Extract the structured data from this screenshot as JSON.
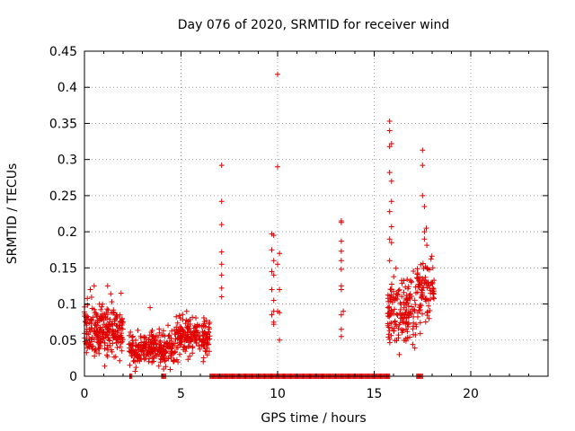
{
  "chart_data": {
    "type": "scatter",
    "title": "Day 076 of 2020, SRMTID for receiver wind",
    "xlabel": "GPS time / hours",
    "ylabel": "SRMTID / TECUs",
    "xlim": [
      0,
      24
    ],
    "ylim": [
      0,
      0.45
    ],
    "xticks": [
      0,
      5,
      10,
      15,
      20
    ],
    "xtick_labels": [
      "0",
      "5",
      "10",
      "15",
      "20"
    ],
    "yticks": [
      0,
      0.05,
      0.1,
      0.15,
      0.2,
      0.25,
      0.3,
      0.35,
      0.4,
      0.45
    ],
    "ytick_labels": [
      "0",
      "0.05",
      "0.1",
      "0.15",
      "0.2",
      "0.25",
      "0.3",
      "0.35",
      "0.4",
      "0.45"
    ],
    "grid": true,
    "marker": "+",
    "color": "#e00000",
    "clusters": [
      {
        "x_range": [
          0.0,
          2.0
        ],
        "y_center": 0.065,
        "y_spread": 0.03,
        "count": 260
      },
      {
        "x_range": [
          2.3,
          4.7
        ],
        "y_center": 0.038,
        "y_spread": 0.018,
        "count": 260
      },
      {
        "x_range": [
          4.7,
          6.5
        ],
        "y_center": 0.055,
        "y_spread": 0.022,
        "count": 200
      },
      {
        "x_range": [
          15.7,
          17.2
        ],
        "y_center": 0.09,
        "y_spread": 0.04,
        "count": 160
      },
      {
        "x_range": [
          17.2,
          18.1
        ],
        "y_center": 0.12,
        "y_spread": 0.04,
        "count": 90
      }
    ],
    "series": [
      {
        "name": "isolated",
        "points": [
          [
            0.3,
            0.12
          ],
          [
            0.5,
            0.125
          ],
          [
            1.2,
            0.125
          ],
          [
            1.9,
            0.115
          ],
          [
            3.4,
            0.095
          ],
          [
            4.1,
            0.01
          ],
          [
            7.1,
            0.292
          ],
          [
            7.1,
            0.242
          ],
          [
            7.1,
            0.21
          ],
          [
            7.1,
            0.172
          ],
          [
            7.1,
            0.155
          ],
          [
            7.1,
            0.14
          ],
          [
            7.1,
            0.122
          ],
          [
            7.1,
            0.11
          ],
          [
            9.7,
            0.197
          ],
          [
            9.8,
            0.195
          ],
          [
            9.7,
            0.175
          ],
          [
            9.8,
            0.16
          ],
          [
            9.7,
            0.145
          ],
          [
            9.8,
            0.14
          ],
          [
            9.7,
            0.12
          ],
          [
            9.8,
            0.105
          ],
          [
            9.8,
            0.09
          ],
          [
            9.7,
            0.085
          ],
          [
            9.8,
            0.075
          ],
          [
            9.8,
            0.072
          ],
          [
            10.0,
            0.418
          ],
          [
            10.0,
            0.29
          ],
          [
            10.1,
            0.17
          ],
          [
            10.0,
            0.155
          ],
          [
            10.1,
            0.12
          ],
          [
            10.0,
            0.09
          ],
          [
            10.1,
            0.088
          ],
          [
            10.1,
            0.05
          ],
          [
            13.3,
            0.215
          ],
          [
            13.3,
            0.213
          ],
          [
            13.3,
            0.187
          ],
          [
            13.3,
            0.173
          ],
          [
            13.3,
            0.16
          ],
          [
            13.3,
            0.148
          ],
          [
            13.3,
            0.125
          ],
          [
            13.3,
            0.12
          ],
          [
            13.4,
            0.09
          ],
          [
            13.3,
            0.085
          ],
          [
            13.3,
            0.065
          ],
          [
            13.3,
            0.055
          ],
          [
            15.8,
            0.353
          ],
          [
            15.8,
            0.34
          ],
          [
            15.9,
            0.322
          ],
          [
            15.8,
            0.318
          ],
          [
            15.8,
            0.282
          ],
          [
            15.9,
            0.27
          ],
          [
            15.9,
            0.242
          ],
          [
            15.8,
            0.228
          ],
          [
            15.9,
            0.207
          ],
          [
            15.8,
            0.19
          ],
          [
            15.9,
            0.185
          ],
          [
            15.8,
            0.16
          ],
          [
            16.3,
            0.03
          ],
          [
            17.5,
            0.313
          ],
          [
            17.5,
            0.292
          ],
          [
            17.5,
            0.25
          ],
          [
            17.6,
            0.235
          ],
          [
            17.6,
            0.2
          ],
          [
            17.7,
            0.205
          ],
          [
            17.6,
            0.19
          ]
        ]
      },
      {
        "name": "zero-values",
        "x_ranges": [
          [
            2.35,
            2.45
          ],
          [
            4.0,
            4.2
          ],
          [
            6.5,
            15.8
          ],
          [
            17.2,
            17.5
          ]
        ],
        "y": 0
      }
    ]
  }
}
